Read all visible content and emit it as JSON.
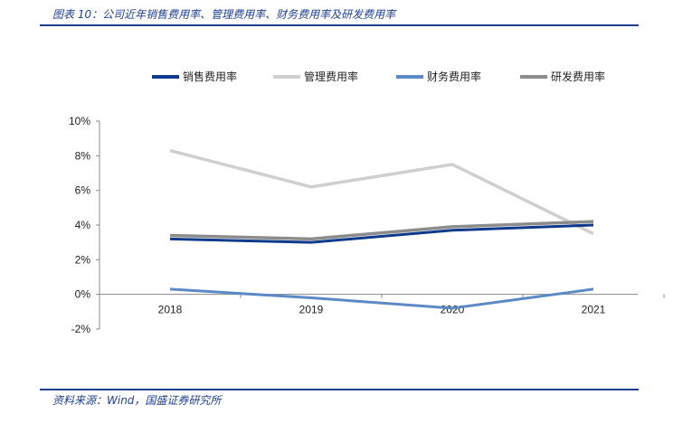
{
  "header": {
    "title": "图表 10：公司近年销售费用率、管理费用率、财务费用率及研发费用率"
  },
  "footer": {
    "source": "资料来源：Wind，国盛证券研究所"
  },
  "chart_data": {
    "type": "line",
    "title": "",
    "xlabel": "",
    "ylabel": "",
    "categories": [
      "2018",
      "2019",
      "2020",
      "2021"
    ],
    "ylim": [
      -0.02,
      0.1
    ],
    "yticks": [
      "10%",
      "8%",
      "6%",
      "4%",
      "2%",
      "0%",
      "-2%"
    ],
    "ytick_values": [
      0.1,
      0.08,
      0.06,
      0.04,
      0.02,
      0.0,
      -0.02
    ],
    "legend_position": "top",
    "grid": false,
    "series": [
      {
        "name": "销售费用率",
        "color": "#0d3a8c",
        "values": [
          0.032,
          0.03,
          0.037,
          0.04
        ]
      },
      {
        "name": "管理费用率",
        "color": "#cfcfcf",
        "values": [
          0.083,
          0.062,
          0.075,
          0.035
        ]
      },
      {
        "name": "财务费用率",
        "color": "#5b8ac6",
        "values": [
          0.003,
          -0.002,
          -0.008,
          0.003
        ]
      },
      {
        "name": "研发费用率",
        "color": "#8c8c8c",
        "values": [
          0.034,
          0.032,
          0.039,
          0.042
        ]
      }
    ]
  }
}
